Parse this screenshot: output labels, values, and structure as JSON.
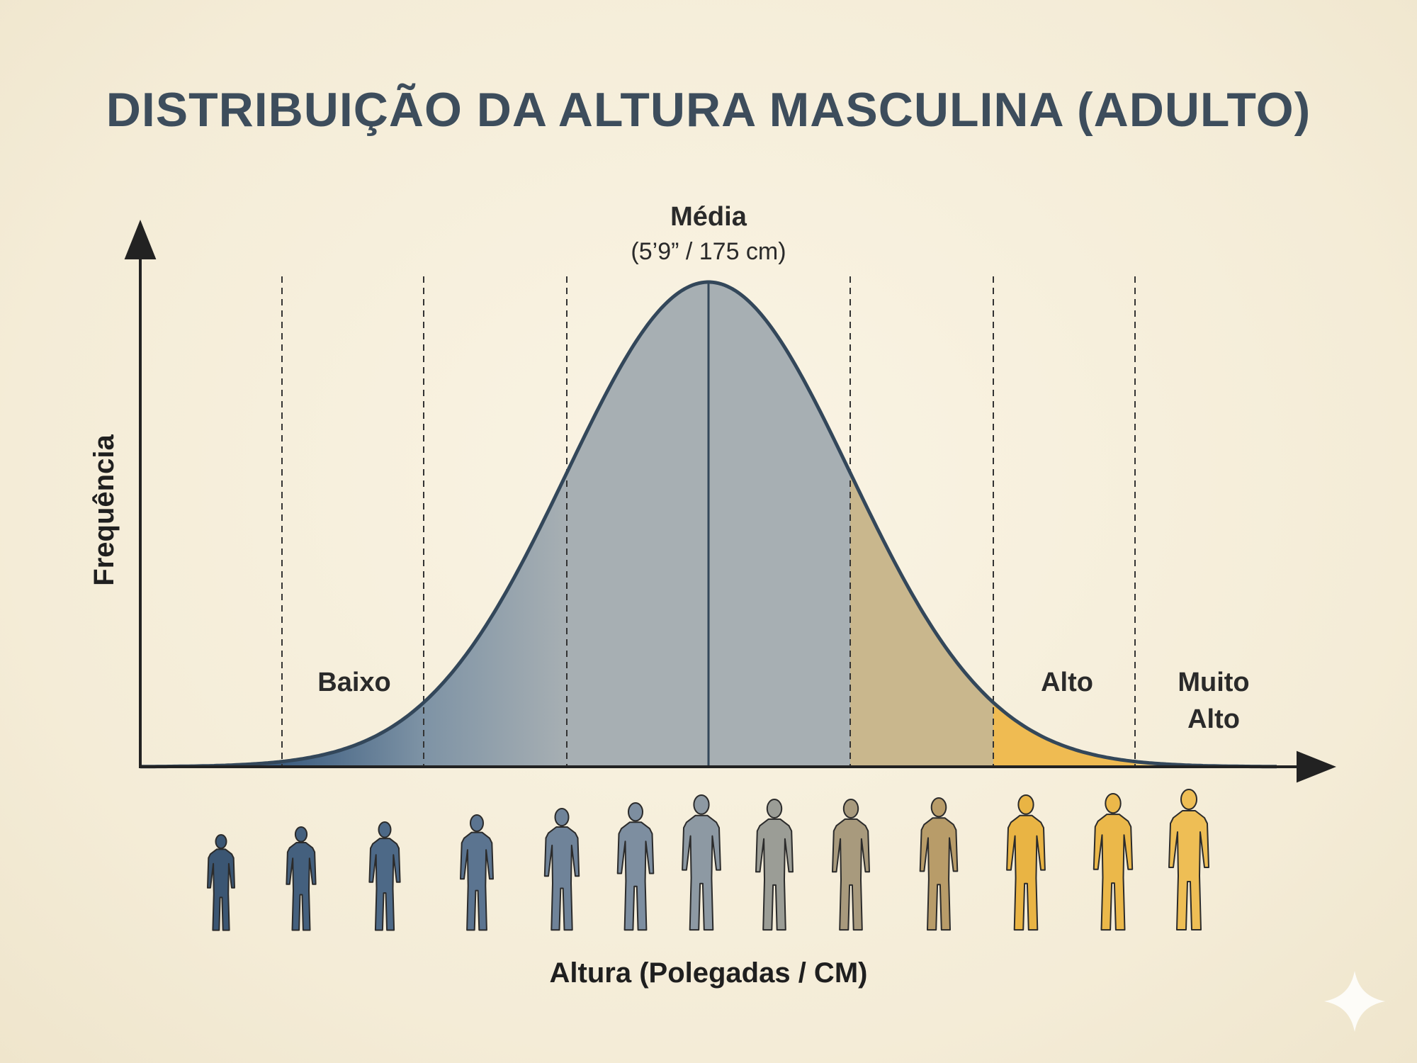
{
  "title": "DISTRIBUIÇÃO DA ALTURA MASCULINA (ADULTO)",
  "axes": {
    "y_label": "Frequência",
    "x_label": "Altura (Polegadas / CM)"
  },
  "mean": {
    "label": "Média",
    "value": "(5’9” / 175 cm)"
  },
  "categories": {
    "short": "Baixo",
    "tall": "Alto",
    "very_tall_line1": "Muito",
    "very_tall_line2": "Alto"
  },
  "colors": {
    "band_1": "#3c5d80",
    "band_2": "#7e93a5",
    "band_3": "#a7afb3",
    "band_4": "#c9b78d",
    "band_5": "#efbb52",
    "band_6": "#f3cf7c",
    "curve": "#33475a",
    "axis": "#222222"
  },
  "figures": {
    "count": 13,
    "colors": [
      "#3b5673",
      "#44607e",
      "#4d6987",
      "#5b7490",
      "#6f8399",
      "#7d8ea0",
      "#8d99a3",
      "#9b9d96",
      "#a89a7d",
      "#b89c69",
      "#e9b444",
      "#ebb84a",
      "#eebe55"
    ]
  }
}
